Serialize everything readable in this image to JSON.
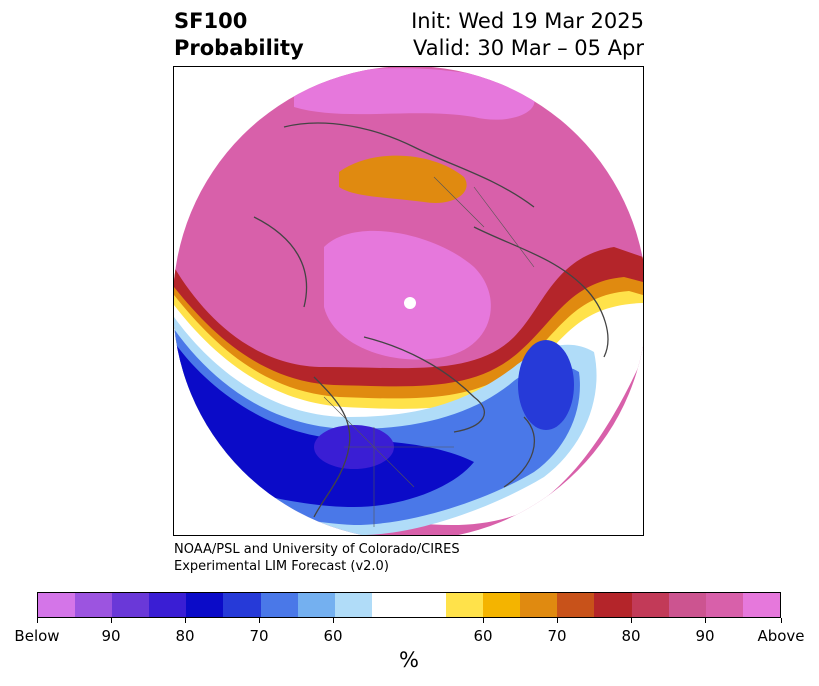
{
  "title": {
    "line1": "SF100",
    "line2": "Probability",
    "init": "Init: Wed 19 Mar 2025",
    "valid": "Valid: 30 Mar – 05 Apr"
  },
  "credit": {
    "line1": "NOAA/PSL and University of Colorado/CIRES",
    "line2": "Experimental LIM Forecast (v2.0)"
  },
  "colorbar": {
    "unit": "%",
    "colors": [
      "#d475e8",
      "#9c54e0",
      "#6a38d8",
      "#3a1ed4",
      "#0b0bc8",
      "#263ad8",
      "#4a78e8",
      "#74b0f0",
      "#b0dcf8",
      "#ffffff",
      "#ffe24a",
      "#f4b400",
      "#e08a10",
      "#c8521a",
      "#b4252a",
      "#c23a58",
      "#cc5490",
      "#d860aa",
      "#e678dc"
    ],
    "labels": [
      "Below",
      "90",
      "80",
      "70",
      "60",
      "60",
      "70",
      "80",
      "90",
      "Above"
    ]
  },
  "map": {
    "projection": "north polar stereographic",
    "layers": [
      "continents-outline",
      "country-borders",
      "us-state-borders"
    ]
  }
}
